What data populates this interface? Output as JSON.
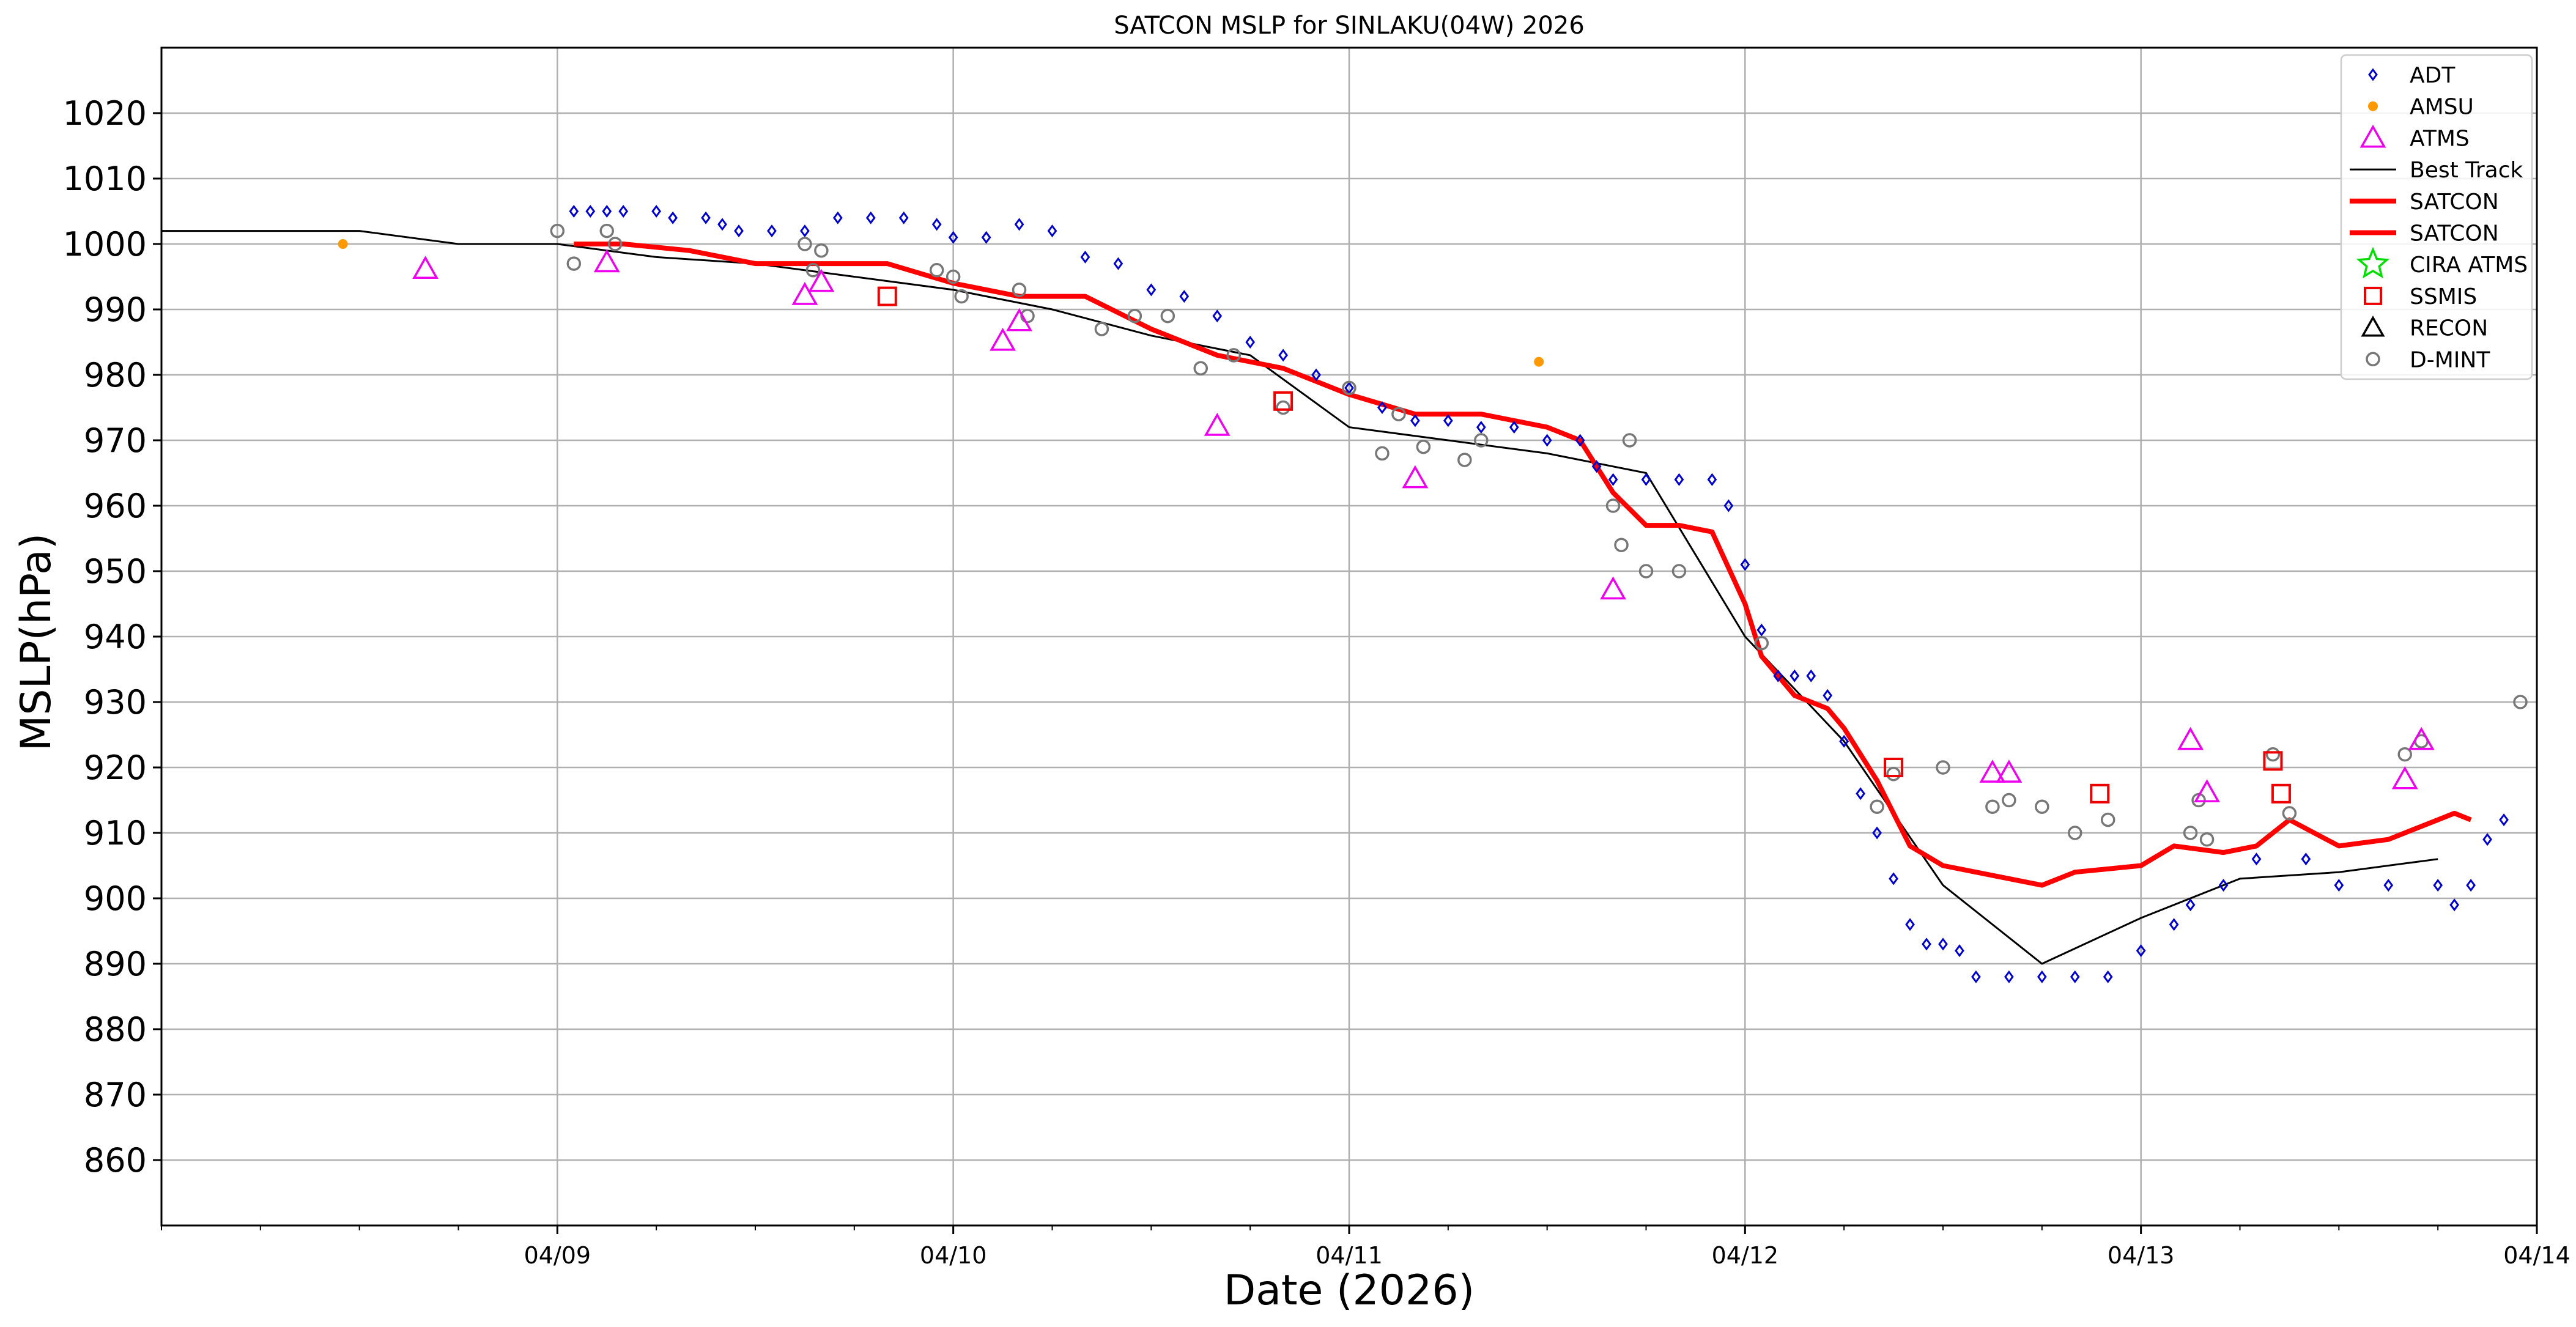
{
  "chart_data": {
    "type": "scatter",
    "title": "SATCON MSLP for SINLAKU(04W) 2026",
    "xlabel": "Date (2026)",
    "ylabel": "MSLP(hPa)",
    "xlim": [
      "2026-04-08 00:00",
      "2026-04-14 00:00"
    ],
    "ylim": [
      850,
      1030
    ],
    "x_tick_labels": [
      {
        "date": "2026-04-09 00:00",
        "label": "04/09"
      },
      {
        "date": "2026-04-10 00:00",
        "label": "04/10"
      },
      {
        "date": "2026-04-11 00:00",
        "label": "04/11"
      },
      {
        "date": "2026-04-12 00:00",
        "label": "04/12"
      },
      {
        "date": "2026-04-13 00:00",
        "label": "04/13"
      },
      {
        "date": "2026-04-14 00:00",
        "label": "04/14"
      }
    ],
    "y_ticks": [
      860,
      870,
      880,
      890,
      900,
      910,
      920,
      930,
      940,
      950,
      960,
      970,
      980,
      990,
      1000,
      1010,
      1020
    ],
    "grid": true,
    "legend_position": "top-right",
    "colors": {
      "ADT": "#0000cc",
      "AMSU": "#ff9900",
      "ATMS": "#ee00ee",
      "Best Track": "#000000",
      "SATCON": "#ff0000",
      "CIRA ATMS": "#00dd00",
      "SSMIS": "#ee0000",
      "RECON": "#000000",
      "D-MINT": "#777777"
    },
    "legend": [
      {
        "name": "ADT",
        "marker": "diamond"
      },
      {
        "name": "AMSU",
        "marker": "dot"
      },
      {
        "name": "ATMS",
        "marker": "triangle"
      },
      {
        "name": "Best Track",
        "marker": "thin-line"
      },
      {
        "name": "SATCON",
        "marker": "thick-line"
      },
      {
        "name": "SATCON",
        "marker": "thick-line"
      },
      {
        "name": "CIRA ATMS",
        "marker": "star"
      },
      {
        "name": "SSMIS",
        "marker": "square"
      },
      {
        "name": "RECON",
        "marker": "triangle-black"
      },
      {
        "name": "D-MINT",
        "marker": "circle"
      }
    ],
    "series": [
      {
        "name": "Best Track",
        "type": "line",
        "points": [
          [
            "2026-04-08 00:00",
            1002
          ],
          [
            "2026-04-08 12:00",
            1002
          ],
          [
            "2026-04-08 18:00",
            1000
          ],
          [
            "2026-04-09 00:00",
            1000
          ],
          [
            "2026-04-09 06:00",
            998
          ],
          [
            "2026-04-09 12:00",
            997
          ],
          [
            "2026-04-09 18:00",
            995
          ],
          [
            "2026-04-10 00:00",
            993
          ],
          [
            "2026-04-10 06:00",
            990
          ],
          [
            "2026-04-10 12:00",
            986
          ],
          [
            "2026-04-10 18:00",
            983
          ],
          [
            "2026-04-11 00:00",
            972
          ],
          [
            "2026-04-11 12:00",
            968
          ],
          [
            "2026-04-11 18:00",
            965
          ],
          [
            "2026-04-12 00:00",
            940
          ],
          [
            "2026-04-12 06:00",
            924
          ],
          [
            "2026-04-12 12:00",
            902
          ],
          [
            "2026-04-12 18:00",
            890
          ],
          [
            "2026-04-13 00:00",
            897
          ],
          [
            "2026-04-13 06:00",
            903
          ],
          [
            "2026-04-13 12:00",
            904
          ],
          [
            "2026-04-13 18:00",
            906
          ]
        ]
      },
      {
        "name": "SATCON",
        "type": "line",
        "points": [
          [
            "2026-04-09 01:00",
            1000
          ],
          [
            "2026-04-09 04:00",
            1000
          ],
          [
            "2026-04-09 08:00",
            999
          ],
          [
            "2026-04-09 12:00",
            997
          ],
          [
            "2026-04-09 16:00",
            997
          ],
          [
            "2026-04-09 20:00",
            997
          ],
          [
            "2026-04-10 00:00",
            994
          ],
          [
            "2026-04-10 04:00",
            992
          ],
          [
            "2026-04-10 08:00",
            992
          ],
          [
            "2026-04-10 12:00",
            987
          ],
          [
            "2026-04-10 16:00",
            983
          ],
          [
            "2026-04-10 20:00",
            981
          ],
          [
            "2026-04-11 00:00",
            977
          ],
          [
            "2026-04-11 04:00",
            974
          ],
          [
            "2026-04-11 08:00",
            974
          ],
          [
            "2026-04-11 12:00",
            972
          ],
          [
            "2026-04-11 14:00",
            970
          ],
          [
            "2026-04-11 16:00",
            962
          ],
          [
            "2026-04-11 18:00",
            957
          ],
          [
            "2026-04-11 20:00",
            957
          ],
          [
            "2026-04-11 22:00",
            956
          ],
          [
            "2026-04-12 00:00",
            945
          ],
          [
            "2026-04-12 01:00",
            937
          ],
          [
            "2026-04-12 03:00",
            931
          ],
          [
            "2026-04-12 05:00",
            929
          ],
          [
            "2026-04-12 06:00",
            926
          ],
          [
            "2026-04-12 08:00",
            918
          ],
          [
            "2026-04-12 10:00",
            908
          ],
          [
            "2026-04-12 12:00",
            905
          ],
          [
            "2026-04-12 14:00",
            904
          ],
          [
            "2026-04-12 18:00",
            902
          ],
          [
            "2026-04-12 20:00",
            904
          ],
          [
            "2026-04-13 00:00",
            905
          ],
          [
            "2026-04-13 02:00",
            908
          ],
          [
            "2026-04-13 05:00",
            907
          ],
          [
            "2026-04-13 07:00",
            908
          ],
          [
            "2026-04-13 09:00",
            912
          ],
          [
            "2026-04-13 12:00",
            908
          ],
          [
            "2026-04-13 15:00",
            909
          ],
          [
            "2026-04-13 18:00",
            912
          ],
          [
            "2026-04-13 19:00",
            913
          ],
          [
            "2026-04-13 20:00",
            912
          ]
        ]
      },
      {
        "name": "ADT",
        "type": "scatter",
        "points": [
          [
            "2026-04-09 01:00",
            1005
          ],
          [
            "2026-04-09 02:00",
            1005
          ],
          [
            "2026-04-09 03:00",
            1005
          ],
          [
            "2026-04-09 04:00",
            1005
          ],
          [
            "2026-04-09 06:00",
            1005
          ],
          [
            "2026-04-09 07:00",
            1004
          ],
          [
            "2026-04-09 09:00",
            1004
          ],
          [
            "2026-04-09 10:00",
            1003
          ],
          [
            "2026-04-09 11:00",
            1002
          ],
          [
            "2026-04-09 13:00",
            1002
          ],
          [
            "2026-04-09 15:00",
            1002
          ],
          [
            "2026-04-09 17:00",
            1004
          ],
          [
            "2026-04-09 19:00",
            1004
          ],
          [
            "2026-04-09 21:00",
            1004
          ],
          [
            "2026-04-09 23:00",
            1003
          ],
          [
            "2026-04-10 00:00",
            1001
          ],
          [
            "2026-04-10 02:00",
            1001
          ],
          [
            "2026-04-10 04:00",
            1003
          ],
          [
            "2026-04-10 06:00",
            1002
          ],
          [
            "2026-04-10 08:00",
            998
          ],
          [
            "2026-04-10 10:00",
            997
          ],
          [
            "2026-04-10 12:00",
            993
          ],
          [
            "2026-04-10 14:00",
            992
          ],
          [
            "2026-04-10 16:00",
            989
          ],
          [
            "2026-04-10 18:00",
            985
          ],
          [
            "2026-04-10 20:00",
            983
          ],
          [
            "2026-04-10 22:00",
            980
          ],
          [
            "2026-04-11 00:00",
            978
          ],
          [
            "2026-04-11 02:00",
            975
          ],
          [
            "2026-04-11 04:00",
            973
          ],
          [
            "2026-04-11 06:00",
            973
          ],
          [
            "2026-04-11 08:00",
            972
          ],
          [
            "2026-04-11 10:00",
            972
          ],
          [
            "2026-04-11 12:00",
            970
          ],
          [
            "2026-04-11 14:00",
            970
          ],
          [
            "2026-04-11 15:00",
            966
          ],
          [
            "2026-04-11 16:00",
            964
          ],
          [
            "2026-04-11 18:00",
            964
          ],
          [
            "2026-04-11 20:00",
            964
          ],
          [
            "2026-04-11 22:00",
            964
          ],
          [
            "2026-04-11 23:00",
            960
          ],
          [
            "2026-04-12 00:00",
            951
          ],
          [
            "2026-04-12 01:00",
            941
          ],
          [
            "2026-04-12 02:00",
            934
          ],
          [
            "2026-04-12 03:00",
            934
          ],
          [
            "2026-04-12 04:00",
            934
          ],
          [
            "2026-04-12 05:00",
            931
          ],
          [
            "2026-04-12 06:00",
            924
          ],
          [
            "2026-04-12 07:00",
            916
          ],
          [
            "2026-04-12 08:00",
            910
          ],
          [
            "2026-04-12 09:00",
            903
          ],
          [
            "2026-04-12 10:00",
            896
          ],
          [
            "2026-04-12 11:00",
            893
          ],
          [
            "2026-04-12 12:00",
            893
          ],
          [
            "2026-04-12 13:00",
            892
          ],
          [
            "2026-04-12 14:00",
            888
          ],
          [
            "2026-04-12 16:00",
            888
          ],
          [
            "2026-04-12 18:00",
            888
          ],
          [
            "2026-04-12 20:00",
            888
          ],
          [
            "2026-04-12 22:00",
            888
          ],
          [
            "2026-04-13 00:00",
            892
          ],
          [
            "2026-04-13 02:00",
            896
          ],
          [
            "2026-04-13 03:00",
            899
          ],
          [
            "2026-04-13 05:00",
            902
          ],
          [
            "2026-04-13 07:00",
            906
          ],
          [
            "2026-04-13 10:00",
            906
          ],
          [
            "2026-04-13 12:00",
            902
          ],
          [
            "2026-04-13 15:00",
            902
          ],
          [
            "2026-04-13 18:00",
            902
          ],
          [
            "2026-04-13 19:00",
            899
          ],
          [
            "2026-04-13 20:00",
            902
          ],
          [
            "2026-04-13 21:00",
            909
          ],
          [
            "2026-04-13 22:00",
            912
          ]
        ]
      },
      {
        "name": "AMSU",
        "type": "scatter",
        "points": [
          [
            "2026-04-08 11:00",
            1000
          ],
          [
            "2026-04-11 11:30",
            982
          ]
        ]
      },
      {
        "name": "ATMS",
        "type": "scatter",
        "points": [
          [
            "2026-04-08 16:00",
            996
          ],
          [
            "2026-04-09 03:00",
            997
          ],
          [
            "2026-04-09 15:00",
            992
          ],
          [
            "2026-04-09 16:00",
            994
          ],
          [
            "2026-04-10 03:00",
            985
          ],
          [
            "2026-04-10 04:00",
            988
          ],
          [
            "2026-04-10 16:00",
            972
          ],
          [
            "2026-04-11 04:00",
            964
          ],
          [
            "2026-04-11 16:00",
            947
          ],
          [
            "2026-04-12 15:00",
            919
          ],
          [
            "2026-04-12 16:00",
            919
          ],
          [
            "2026-04-13 03:00",
            924
          ],
          [
            "2026-04-13 04:00",
            916
          ],
          [
            "2026-04-13 16:00",
            918
          ],
          [
            "2026-04-13 17:00",
            924
          ]
        ]
      },
      {
        "name": "SSMIS",
        "type": "scatter",
        "points": [
          [
            "2026-04-09 20:00",
            992
          ],
          [
            "2026-04-10 20:00",
            976
          ],
          [
            "2026-04-12 09:00",
            920
          ],
          [
            "2026-04-12 21:30",
            916
          ],
          [
            "2026-04-13 08:00",
            921
          ],
          [
            "2026-04-13 08:30",
            916
          ]
        ]
      },
      {
        "name": "D-MINT",
        "type": "scatter",
        "points": [
          [
            "2026-04-09 00:00",
            1002
          ],
          [
            "2026-04-09 01:00",
            997
          ],
          [
            "2026-04-09 03:00",
            1002
          ],
          [
            "2026-04-09 03:30",
            1000
          ],
          [
            "2026-04-09 15:00",
            1000
          ],
          [
            "2026-04-09 15:30",
            996
          ],
          [
            "2026-04-09 16:00",
            999
          ],
          [
            "2026-04-09 23:00",
            996
          ],
          [
            "2026-04-10 00:00",
            995
          ],
          [
            "2026-04-10 00:30",
            992
          ],
          [
            "2026-04-10 04:00",
            993
          ],
          [
            "2026-04-10 04:30",
            989
          ],
          [
            "2026-04-10 09:00",
            987
          ],
          [
            "2026-04-10 11:00",
            989
          ],
          [
            "2026-04-10 13:00",
            989
          ],
          [
            "2026-04-10 15:00",
            981
          ],
          [
            "2026-04-10 17:00",
            983
          ],
          [
            "2026-04-10 20:00",
            975
          ],
          [
            "2026-04-11 00:00",
            978
          ],
          [
            "2026-04-11 02:00",
            968
          ],
          [
            "2026-04-11 03:00",
            974
          ],
          [
            "2026-04-11 04:30",
            969
          ],
          [
            "2026-04-11 07:00",
            967
          ],
          [
            "2026-04-11 08:00",
            970
          ],
          [
            "2026-04-11 16:00",
            960
          ],
          [
            "2026-04-11 16:30",
            954
          ],
          [
            "2026-04-11 17:00",
            970
          ],
          [
            "2026-04-11 18:00",
            950
          ],
          [
            "2026-04-11 20:00",
            950
          ],
          [
            "2026-04-12 01:00",
            939
          ],
          [
            "2026-04-12 08:00",
            914
          ],
          [
            "2026-04-12 09:00",
            919
          ],
          [
            "2026-04-12 12:00",
            920
          ],
          [
            "2026-04-12 15:00",
            914
          ],
          [
            "2026-04-12 16:00",
            915
          ],
          [
            "2026-04-12 18:00",
            914
          ],
          [
            "2026-04-12 20:00",
            910
          ],
          [
            "2026-04-12 22:00",
            912
          ],
          [
            "2026-04-13 03:00",
            910
          ],
          [
            "2026-04-13 03:30",
            915
          ],
          [
            "2026-04-13 04:00",
            909
          ],
          [
            "2026-04-13 08:00",
            922
          ],
          [
            "2026-04-13 09:00",
            913
          ],
          [
            "2026-04-13 16:00",
            922
          ],
          [
            "2026-04-13 17:00",
            924
          ],
          [
            "2026-04-13 23:00",
            930
          ]
        ]
      },
      {
        "name": "CIRA ATMS",
        "type": "scatter",
        "points": []
      },
      {
        "name": "RECON",
        "type": "scatter",
        "points": []
      }
    ]
  }
}
